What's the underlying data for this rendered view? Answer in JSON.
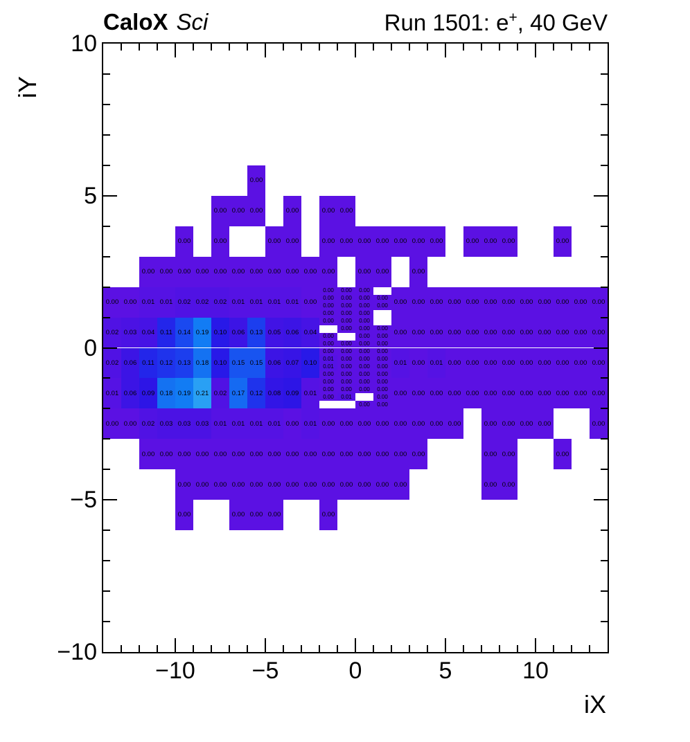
{
  "header": {
    "left_bold": "CaloX",
    "left_italic": "Sci",
    "right_main": "Run 1501: e",
    "right_sup": "+",
    "right_tail": ", 40 GeV"
  },
  "axes": {
    "x_label": "iX",
    "y_label": "iY",
    "x_range": [
      -14,
      14
    ],
    "y_range": [
      -10,
      10
    ],
    "x_major_ticks": [
      {
        "v": -10,
        "label": "−10"
      },
      {
        "v": -5,
        "label": "−5"
      },
      {
        "v": 0,
        "label": "0"
      },
      {
        "v": 5,
        "label": "5"
      },
      {
        "v": 10,
        "label": "10"
      }
    ],
    "y_major_ticks": [
      {
        "v": 10,
        "label": "10"
      },
      {
        "v": 5,
        "label": "5"
      },
      {
        "v": 0,
        "label": "0"
      },
      {
        "v": -5,
        "label": "−5"
      },
      {
        "v": -10,
        "label": "−10"
      }
    ],
    "minor_tick_step": 1
  },
  "chart_data": {
    "type": "heatmap",
    "title": "Run 1501: e+, 40 GeV",
    "xlabel": "iX",
    "ylabel": "iY",
    "xlim": [
      -14,
      14
    ],
    "ylim": [
      -10,
      10
    ],
    "grid": false,
    "legend": "none",
    "palette": {
      "0.00": "#5B11E3",
      "0.01": "#5512E4",
      "0.02": "#5012E4",
      "0.03": "#4B12E4",
      "0.04": "#4613E5",
      "0.05": "#4113E5",
      "0.06": "#3C14E5",
      "0.07": "#3714E6",
      "0.08": "#3215E6",
      "0.09": "#2D15E6",
      "0.10": "#2819E8",
      "0.11": "#2326EA",
      "0.12": "#1F33EC",
      "0.13": "#1C3EEE",
      "0.14": "#1A49F0",
      "0.15": "#1854F0",
      "0.17": "#156AF2",
      "0.18": "#1472F2",
      "0.19": "#127CF4",
      "0.21": "#29A0F4"
    },
    "coarse_rows": [
      {
        "iy": 5,
        "runs": [
          {
            "start": -6,
            "values": [
              "0.00"
            ]
          }
        ]
      },
      {
        "iy": 4,
        "runs": [
          {
            "start": -8,
            "values": [
              "0.00",
              "0.00",
              "0.00"
            ]
          },
          {
            "start": -4,
            "values": [
              "0.00"
            ]
          },
          {
            "start": -2,
            "values": [
              "0.00",
              "0.00"
            ]
          }
        ]
      },
      {
        "iy": 3,
        "runs": [
          {
            "start": -10,
            "values": [
              "0.00"
            ]
          },
          {
            "start": -8,
            "values": [
              "0.00"
            ]
          },
          {
            "start": -5,
            "values": [
              "0.00",
              "0.00"
            ]
          },
          {
            "start": -2,
            "values": [
              "0.00",
              "0.00",
              "0.00",
              "0.00",
              "0.00",
              "0.00",
              "0.00"
            ]
          },
          {
            "start": 6,
            "values": [
              "0.00",
              "0.00",
              "0.00"
            ]
          },
          {
            "start": 11,
            "values": [
              "0.00"
            ]
          }
        ]
      },
      {
        "iy": 2,
        "runs": [
          {
            "start": -12,
            "values": [
              "0.00",
              "0.00",
              "0.00",
              "0.00",
              "0.00",
              "0.00",
              "0.00",
              "0.00",
              "0.00",
              "0.00",
              "0.00"
            ]
          },
          {
            "start": 0,
            "values": [
              "0.00",
              "0.00"
            ]
          },
          {
            "start": 3,
            "values": [
              "0.00"
            ]
          }
        ]
      },
      {
        "iy": 1,
        "runs": [
          {
            "start": -14,
            "values": [
              "0.00",
              "0.00",
              "0.01",
              "0.01",
              "0.02",
              "0.02",
              "0.02",
              "0.01",
              "0.01",
              "0.01",
              "0.01",
              "0.00"
            ]
          },
          {
            "start": 2,
            "values": [
              "0.00",
              "0.00",
              "0.00",
              "0.00",
              "0.00",
              "0.00",
              "0.00",
              "0.00",
              "0.00",
              "0.00",
              "0.00",
              "0.00"
            ]
          }
        ]
      },
      {
        "iy": 0,
        "runs": [
          {
            "start": -14,
            "values": [
              "0.02",
              "0.03",
              "0.04",
              "0.11",
              "0.14",
              "0.19",
              "0.10",
              "0.06",
              "0.13",
              "0.05",
              "0.06",
              "0.04"
            ]
          },
          {
            "start": 2,
            "values": [
              "0.00",
              "0.00",
              "0.00",
              "0.00",
              "0.00",
              "0.00",
              "0.00",
              "0.00",
              "0.00",
              "0.00",
              "0.00",
              "0.00"
            ]
          }
        ]
      },
      {
        "iy": -1,
        "runs": [
          {
            "start": -14,
            "values": [
              "0.02",
              "0.06",
              "0.11",
              "0.12",
              "0.13",
              "0.18",
              "0.10",
              "0.15",
              "0.15",
              "0.06",
              "0.07",
              "0.10"
            ]
          },
          {
            "start": 2,
            "values": [
              "0.01",
              "0.00",
              "0.01",
              "0.00",
              "0.00",
              "0.00",
              "0.00",
              "0.00",
              "0.00",
              "0.00",
              "0.00",
              "0.00"
            ]
          }
        ]
      },
      {
        "iy": -2,
        "runs": [
          {
            "start": -14,
            "values": [
              "0.01",
              "0.06",
              "0.09",
              "0.18",
              "0.19",
              "0.21",
              "0.02",
              "0.17",
              "0.12",
              "0.08",
              "0.09",
              "0.01"
            ]
          },
          {
            "start": 2,
            "values": [
              "0.00",
              "0.00",
              "0.00",
              "0.00",
              "0.00",
              "0.00",
              "0.00",
              "0.00",
              "0.00",
              "0.00",
              "0.00",
              "0.00"
            ]
          }
        ]
      },
      {
        "iy": -3,
        "runs": [
          {
            "start": -14,
            "values": [
              "0.00",
              "0.00",
              "0.02",
              "0.03",
              "0.03",
              "0.03",
              "0.01",
              "0.01",
              "0.01",
              "0.01",
              "0.00",
              "0.01",
              "0.00",
              "0.00",
              "0.00",
              "0.00",
              "0.00",
              "0.00",
              "0.00",
              "0.00"
            ]
          },
          {
            "start": 7,
            "values": [
              "0.00",
              "0.00",
              "0.00",
              "0.00"
            ]
          },
          {
            "start": 13,
            "values": [
              "0.00"
            ]
          }
        ]
      },
      {
        "iy": -4,
        "runs": [
          {
            "start": -12,
            "values": [
              "0.00",
              "0.00",
              "0.00",
              "0.00",
              "0.00",
              "0.00",
              "0.00",
              "0.00",
              "0.00",
              "0.00",
              "0.00",
              "0.00",
              "0.00",
              "0.00",
              "0.00",
              "0.00"
            ]
          },
          {
            "start": 7,
            "values": [
              "0.00",
              "0.00"
            ]
          },
          {
            "start": 11,
            "values": [
              "0.00"
            ]
          }
        ]
      },
      {
        "iy": -5,
        "runs": [
          {
            "start": -10,
            "values": [
              "0.00",
              "0.00",
              "0.00",
              "0.00",
              "0.00",
              "0.00",
              "0.00",
              "0.00",
              "0.00",
              "0.00",
              "0.00",
              "0.00",
              "0.00"
            ]
          },
          {
            "start": 7,
            "values": [
              "0.00",
              "0.00"
            ]
          }
        ]
      },
      {
        "iy": -6,
        "runs": [
          {
            "start": -10,
            "values": [
              "0.00"
            ]
          },
          {
            "start": -7,
            "values": [
              "0.00",
              "0.00",
              "0.00"
            ]
          },
          {
            "start": -2,
            "values": [
              "0.00"
            ]
          }
        ]
      }
    ],
    "fine_block": {
      "ix_start": -2,
      "n_cols": 4,
      "iy_top": 2.0,
      "cell_w_units": 1,
      "cell_h_units": 0.25,
      "rows": [
        [
          "0.00",
          "0.00",
          "0.00",
          null
        ],
        [
          "0.00",
          "0.00",
          "0.00",
          "0.00"
        ],
        [
          "0.00",
          "0.00",
          "0.00",
          "0.00"
        ],
        [
          "0.00",
          "0.00",
          "0.00",
          null
        ],
        [
          "0.00",
          "0.00",
          "0.00",
          null
        ],
        [
          null,
          "0.00",
          "0.00",
          "0.00"
        ],
        [
          "0.00",
          null,
          "0.00",
          "0.00"
        ],
        [
          "0.00",
          "0.00",
          "0.00",
          "0.00"
        ],
        [
          "0.00",
          "0.00",
          "0.00",
          "0.00"
        ],
        [
          "0.01",
          "0.00",
          "0.00",
          "0.00"
        ],
        [
          "0.01",
          "0.00",
          "0.00",
          "0.00"
        ],
        [
          "0.00",
          "0.00",
          "0.00",
          "0.00"
        ],
        [
          "0.00",
          "0.00",
          "0.00",
          "0.00"
        ],
        [
          "0.00",
          "0.00",
          "0.00",
          "0.00"
        ],
        [
          "0.00",
          "0.01",
          null,
          "0.00"
        ],
        [
          null,
          null,
          "0.00",
          "0.00"
        ]
      ]
    }
  }
}
